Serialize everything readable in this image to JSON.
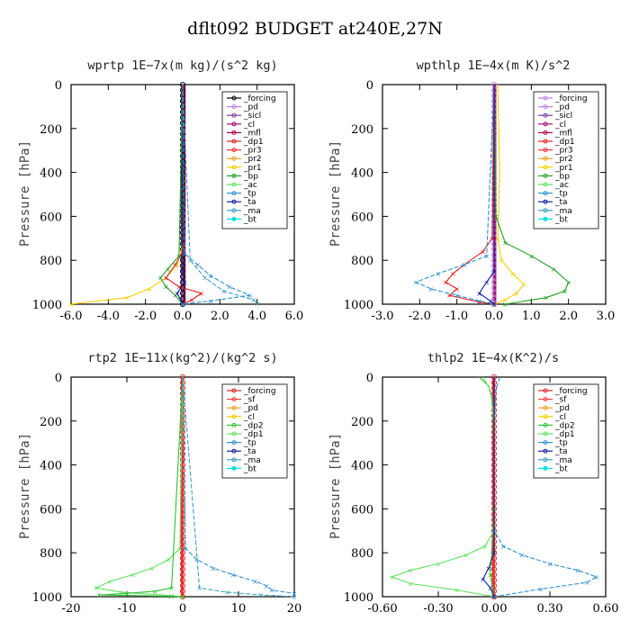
{
  "figure": {
    "title": "dflt092  BUDGET at240E,27N"
  },
  "palette": {
    "forcing": "#000000",
    "pd": "#c080e0",
    "sicl": "#7b3fa0",
    "cl": "#a01070",
    "mfl": "#b00040",
    "dp1": "#e02020",
    "pr3": "#f03030",
    "pr2": "#e8a020",
    "pr1": "#f0d000",
    "bp": "#20a020",
    "ac": "#60e060",
    "tp": "#3090d0",
    "ta": "#1020a0",
    "ma": "#40a0c0",
    "bt": "#00e0e0",
    "sf": "#f04040",
    "dp2": "#30c030",
    "forcing_red": "#e02020",
    "zero_line": "#c00000"
  },
  "chart_data": [
    {
      "type": "line",
      "title": "wprtp   1E−7x(m kg)/(s^2 kg)",
      "xlabel": "",
      "ylabel": "Pressure [hPa]",
      "xlim": [
        -6,
        6
      ],
      "ylim": [
        1000,
        0
      ],
      "xticks": [
        "-6.0",
        "-4.0",
        "-2.0",
        "0.0",
        "2.0",
        "4.0",
        "6.0"
      ],
      "xtick_values": [
        -6,
        -4,
        -2,
        0,
        2,
        4,
        6
      ],
      "yticks": [
        "0",
        "200",
        "400",
        "600",
        "800",
        "1000"
      ],
      "ytick_values": [
        0,
        200,
        400,
        600,
        800,
        1000
      ],
      "legend_position": "top-right",
      "legend": [
        "_forcing",
        "_pd",
        "_sicl",
        "_cl",
        "_mfl",
        "_dp1",
        "_pr3",
        "_pr2",
        "_pr1",
        "_bp",
        "_ac",
        "_tp",
        "_ta",
        "_ma",
        "_bt"
      ],
      "legend_colors": [
        "forcing",
        "pd",
        "sicl",
        "cl",
        "mfl",
        "dp1",
        "pr3",
        "pr2",
        "pr1",
        "bp",
        "ac",
        "tp",
        "ta",
        "ma",
        "bt"
      ],
      "zero_series": [
        "forcing",
        "pd",
        "sicl",
        "cl",
        "mfl"
      ],
      "series": [
        {
          "key": "pr1",
          "x": [
            0,
            0,
            -0.3,
            -0.9,
            -1.8,
            -3.0,
            -6.0
          ],
          "y": [
            0,
            740,
            820,
            880,
            930,
            970,
            1000
          ]
        },
        {
          "key": "bp",
          "x": [
            0,
            -0.2,
            -0.8,
            -1.2,
            -0.9,
            -0.4,
            0
          ],
          "y": [
            0,
            780,
            840,
            880,
            920,
            960,
            1000
          ]
        },
        {
          "key": "dp1",
          "x": [
            0,
            0,
            -0.4,
            -0.9,
            -0.2,
            1.0,
            0.5,
            0
          ],
          "y": [
            0,
            760,
            820,
            880,
            920,
            950,
            980,
            1000
          ]
        },
        {
          "key": "ta",
          "x": [
            0,
            0,
            0.1,
            -0.3,
            0
          ],
          "y": [
            0,
            850,
            900,
            950,
            1000
          ]
        },
        {
          "key": "tp",
          "x": [
            0,
            0.1,
            0.8,
            1.5,
            2.5,
            3.6,
            1.5,
            0
          ],
          "y": [
            0,
            770,
            820,
            870,
            920,
            960,
            985,
            1000
          ]
        },
        {
          "key": "ma",
          "x": [
            0,
            0.4,
            1.2,
            2.2,
            3.8,
            4.0
          ],
          "y": [
            0,
            800,
            880,
            940,
            980,
            995
          ]
        }
      ]
    },
    {
      "type": "line",
      "title": "wpthlp   1E−4x(m K)/s^2",
      "xlabel": "",
      "ylabel": "Pressure [hPa]",
      "xlim": [
        -3,
        3
      ],
      "ylim": [
        1000,
        0
      ],
      "xticks": [
        "-3.0",
        "-2.0",
        "-1.0",
        "0.0",
        "1.0",
        "2.0",
        "3.0"
      ],
      "xtick_values": [
        -3,
        -2,
        -1,
        0,
        1,
        2,
        3
      ],
      "yticks": [
        "0",
        "200",
        "400",
        "600",
        "800",
        "1000"
      ],
      "ytick_values": [
        0,
        200,
        400,
        600,
        800,
        1000
      ],
      "legend_position": "top-right",
      "legend": [
        "_forcing",
        "_pd",
        "_sicl",
        "_cl",
        "_mfl",
        "_dp1",
        "_pr3",
        "_pr2",
        "_pr1",
        "_bp",
        "_ac",
        "_tp",
        "_ta",
        "_ma",
        "_bt"
      ],
      "legend_colors": [
        "pd",
        "pd",
        "sicl",
        "cl",
        "mfl",
        "dp1",
        "pr3",
        "pr2",
        "pr1",
        "bp",
        "ac",
        "tp",
        "ta",
        "ma",
        "bt"
      ],
      "zero_series": [
        "pd",
        "sicl",
        "cl",
        "mfl"
      ],
      "series": [
        {
          "key": "pr1",
          "x": [
            0.1,
            0.15,
            0.1,
            0.2,
            0.5,
            0.8,
            0.6,
            0.3,
            0
          ],
          "y": [
            0,
            400,
            700,
            800,
            860,
            910,
            950,
            980,
            1000
          ]
        },
        {
          "key": "bp",
          "x": [
            0,
            0.05,
            0.3,
            1.0,
            1.6,
            2.0,
            1.9,
            1.4,
            0.3
          ],
          "y": [
            0,
            600,
            720,
            780,
            840,
            900,
            940,
            970,
            1000
          ]
        },
        {
          "key": "dp1",
          "x": [
            0,
            -0.05,
            -0.3,
            -0.8,
            -1.1,
            -1.3,
            -1.0,
            -1.2,
            -0.4,
            0
          ],
          "y": [
            0,
            700,
            760,
            820,
            860,
            900,
            930,
            960,
            990,
            1000
          ]
        },
        {
          "key": "tp",
          "x": [
            0,
            -0.2,
            -0.8,
            -1.5,
            -2.1,
            -1.7,
            -1.0,
            -0.4,
            0
          ],
          "y": [
            0,
            780,
            820,
            860,
            900,
            930,
            960,
            985,
            1000
          ]
        },
        {
          "key": "ta",
          "x": [
            0,
            0,
            -0.2,
            -0.4,
            -0.1,
            0
          ],
          "y": [
            0,
            850,
            900,
            950,
            985,
            1000
          ]
        }
      ]
    },
    {
      "type": "line",
      "title": "rtp2   1E−11x(kg^2)/(kg^2 s)",
      "xlabel": "",
      "ylabel": "Pressure [hPa]",
      "xlim": [
        -20,
        20
      ],
      "ylim": [
        1000,
        0
      ],
      "xticks": [
        "-20",
        "-10",
        "0",
        "10",
        "20"
      ],
      "xtick_values": [
        -20,
        -10,
        0,
        10,
        20
      ],
      "yticks": [
        "0",
        "200",
        "400",
        "600",
        "800",
        "1000"
      ],
      "ytick_values": [
        0,
        200,
        400,
        600,
        800,
        1000
      ],
      "legend_position": "top-right",
      "legend": [
        "_forcing",
        "_sf",
        "_pd",
        "_cl",
        "_dp2",
        "_dp1",
        "_tp",
        "_ta",
        "_ma",
        "_bt"
      ],
      "legend_colors": [
        "forcing_red",
        "sf",
        "pr2",
        "pr1",
        "dp2",
        "ac",
        "tp",
        "ta",
        "ma",
        "bt"
      ],
      "zero_series": [
        "forcing_red",
        "sf"
      ],
      "series": [
        {
          "key": "ac",
          "x": [
            0,
            -0.5,
            -2.5,
            -5.5,
            -9,
            -13,
            -15.5,
            -11,
            -2,
            0
          ],
          "y": [
            0,
            780,
            830,
            870,
            900,
            930,
            960,
            980,
            995,
            1000
          ]
        },
        {
          "key": "dp2",
          "x": [
            0,
            -2,
            -5,
            -10,
            -15,
            -2,
            0
          ],
          "y": [
            0,
            960,
            975,
            985,
            992,
            998,
            1000
          ]
        },
        {
          "key": "tp",
          "x": [
            0,
            0.5,
            2.5,
            5.5,
            9,
            13,
            15,
            16,
            20
          ],
          "y": [
            0,
            780,
            830,
            870,
            900,
            930,
            950,
            970,
            985
          ]
        },
        {
          "key": "ma",
          "x": [
            0,
            3,
            8,
            14,
            20
          ],
          "y": [
            0,
            960,
            980,
            992,
            1000
          ]
        }
      ]
    },
    {
      "type": "line",
      "title": "thlp2   1E−4x(K^2)/s",
      "xlabel": "",
      "ylabel": "Pressure [hPa]",
      "xlim": [
        -0.6,
        0.6
      ],
      "ylim": [
        1000,
        0
      ],
      "xticks": [
        "-0.60",
        "-0.30",
        "0.00",
        "0.30",
        "0.60"
      ],
      "xtick_values": [
        -0.6,
        -0.3,
        0,
        0.3,
        0.6
      ],
      "yticks": [
        "0",
        "200",
        "400",
        "600",
        "800",
        "1000"
      ],
      "ytick_values": [
        0,
        200,
        400,
        600,
        800,
        1000
      ],
      "legend_position": "top-right",
      "legend": [
        "_forcing",
        "_sf",
        "_pd",
        "_cl",
        "_dp2",
        "_dp1",
        "_tp",
        "_ta",
        "_ma",
        "_bt"
      ],
      "legend_colors": [
        "forcing_red",
        "sf",
        "pr2",
        "pr1",
        "dp2",
        "ac",
        "tp",
        "ta",
        "ma",
        "bt"
      ],
      "zero_series": [
        "forcing_red",
        "sf"
      ],
      "series": [
        {
          "key": "dp2",
          "x": [
            -0.08,
            -0.03,
            -0.01,
            0,
            0,
            -0.02,
            0
          ],
          "y": [
            0,
            40,
            100,
            300,
            600,
            900,
            1000
          ]
        },
        {
          "key": "ac",
          "x": [
            -0.06,
            -0.02,
            0,
            0,
            -0.05,
            -0.15,
            -0.3,
            -0.45,
            -0.55,
            -0.45,
            -0.2,
            0
          ],
          "y": [
            0,
            60,
            200,
            700,
            770,
            810,
            850,
            880,
            910,
            940,
            970,
            1000
          ]
        },
        {
          "key": "tp",
          "x": [
            0.03,
            0.01,
            0,
            0,
            0.05,
            0.15,
            0.3,
            0.45,
            0.55,
            0.5,
            0.25,
            0
          ],
          "y": [
            0,
            60,
            200,
            700,
            770,
            810,
            850,
            880,
            910,
            935,
            965,
            1000
          ]
        },
        {
          "key": "ta",
          "x": [
            0,
            0,
            -0.03,
            -0.06,
            -0.02,
            0
          ],
          "y": [
            0,
            800,
            870,
            920,
            960,
            1000
          ]
        }
      ]
    }
  ]
}
